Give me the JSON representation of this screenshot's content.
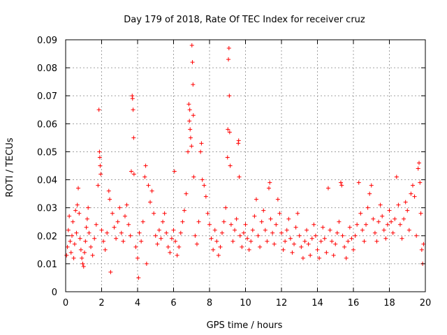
{
  "chart_data": {
    "type": "scatter",
    "title": "Day 179 of 2018, Rate Of TEC Index for receiver cruz",
    "xlabel": "GPS time / hours",
    "ylabel": "ROTI / TECUs",
    "xlim": [
      0,
      20
    ],
    "ylim": [
      0,
      0.09
    ],
    "x_ticks": [
      "0",
      "2",
      "4",
      "6",
      "8",
      "10",
      "12",
      "14",
      "16",
      "18",
      "20"
    ],
    "y_ticks": [
      "0",
      "0.01",
      "0.02",
      "0.03",
      "0.04",
      "0.05",
      "0.06",
      "0.07",
      "0.08",
      "0.09"
    ],
    "grid": true,
    "marker": "+",
    "color": "#ff0000",
    "series": [
      {
        "name": "ROTI",
        "points": [
          [
            0.05,
            0.013
          ],
          [
            0.1,
            0.016
          ],
          [
            0.15,
            0.022
          ],
          [
            0.2,
            0.027
          ],
          [
            0.25,
            0.018
          ],
          [
            0.3,
            0.014
          ],
          [
            0.35,
            0.02
          ],
          [
            0.4,
            0.025
          ],
          [
            0.45,
            0.012
          ],
          [
            0.5,
            0.017
          ],
          [
            0.55,
            0.029
          ],
          [
            0.6,
            0.021
          ],
          [
            0.65,
            0.031
          ],
          [
            0.7,
            0.037
          ],
          [
            0.75,
            0.028
          ],
          [
            0.8,
            0.019
          ],
          [
            0.85,
            0.015
          ],
          [
            0.9,
            0.012
          ],
          [
            0.95,
            0.01
          ],
          [
            1.0,
            0.009
          ],
          [
            1.05,
            0.014
          ],
          [
            1.1,
            0.018
          ],
          [
            1.15,
            0.023
          ],
          [
            1.2,
            0.026
          ],
          [
            1.25,
            0.03
          ],
          [
            1.3,
            0.021
          ],
          [
            1.4,
            0.016
          ],
          [
            1.5,
            0.013
          ],
          [
            1.6,
            0.019
          ],
          [
            1.7,
            0.024
          ],
          [
            1.8,
            0.038
          ],
          [
            1.85,
            0.065
          ],
          [
            1.88,
            0.05
          ],
          [
            1.9,
            0.048
          ],
          [
            1.92,
            0.045
          ],
          [
            1.95,
            0.042
          ],
          [
            2.0,
            0.022
          ],
          [
            2.1,
            0.018
          ],
          [
            2.2,
            0.015
          ],
          [
            2.3,
            0.021
          ],
          [
            2.4,
            0.036
          ],
          [
            2.45,
            0.033
          ],
          [
            2.5,
            0.007
          ],
          [
            2.6,
            0.028
          ],
          [
            2.7,
            0.023
          ],
          [
            2.8,
            0.019
          ],
          [
            2.9,
            0.025
          ],
          [
            3.0,
            0.03
          ],
          [
            3.1,
            0.021
          ],
          [
            3.2,
            0.018
          ],
          [
            3.3,
            0.027
          ],
          [
            3.4,
            0.031
          ],
          [
            3.5,
            0.024
          ],
          [
            3.6,
            0.02
          ],
          [
            3.65,
            0.043
          ],
          [
            3.7,
            0.07
          ],
          [
            3.72,
            0.069
          ],
          [
            3.75,
            0.065
          ],
          [
            3.78,
            0.055
          ],
          [
            3.8,
            0.042
          ],
          [
            3.9,
            0.016
          ],
          [
            4.0,
            0.012
          ],
          [
            4.05,
            0.005
          ],
          [
            4.1,
            0.021
          ],
          [
            4.2,
            0.018
          ],
          [
            4.3,
            0.025
          ],
          [
            4.4,
            0.041
          ],
          [
            4.45,
            0.045
          ],
          [
            4.5,
            0.01
          ],
          [
            4.6,
            0.038
          ],
          [
            4.7,
            0.032
          ],
          [
            4.8,
            0.036
          ],
          [
            4.9,
            0.028
          ],
          [
            5.0,
            0.02
          ],
          [
            5.1,
            0.017
          ],
          [
            5.2,
            0.022
          ],
          [
            5.3,
            0.019
          ],
          [
            5.4,
            0.025
          ],
          [
            5.5,
            0.028
          ],
          [
            5.6,
            0.021
          ],
          [
            5.7,
            0.016
          ],
          [
            5.8,
            0.014
          ],
          [
            5.9,
            0.019
          ],
          [
            6.0,
            0.022
          ],
          [
            6.05,
            0.043
          ],
          [
            6.1,
            0.018
          ],
          [
            6.2,
            0.013
          ],
          [
            6.3,
            0.016
          ],
          [
            6.4,
            0.021
          ],
          [
            6.5,
            0.025
          ],
          [
            6.6,
            0.029
          ],
          [
            6.7,
            0.035
          ],
          [
            6.8,
            0.05
          ],
          [
            6.85,
            0.067
          ],
          [
            6.88,
            0.061
          ],
          [
            6.9,
            0.065
          ],
          [
            6.92,
            0.058
          ],
          [
            6.95,
            0.055
          ],
          [
            7.0,
            0.052
          ],
          [
            7.02,
            0.088
          ],
          [
            7.05,
            0.082
          ],
          [
            7.08,
            0.074
          ],
          [
            7.1,
            0.063
          ],
          [
            7.12,
            0.041
          ],
          [
            7.2,
            0.02
          ],
          [
            7.3,
            0.017
          ],
          [
            7.4,
            0.025
          ],
          [
            7.5,
            0.05
          ],
          [
            7.55,
            0.053
          ],
          [
            7.6,
            0.04
          ],
          [
            7.7,
            0.038
          ],
          [
            7.8,
            0.034
          ],
          [
            7.9,
            0.028
          ],
          [
            8.0,
            0.024
          ],
          [
            8.1,
            0.019
          ],
          [
            8.2,
            0.015
          ],
          [
            8.3,
            0.022
          ],
          [
            8.4,
            0.018
          ],
          [
            8.5,
            0.013
          ],
          [
            8.6,
            0.016
          ],
          [
            8.7,
            0.021
          ],
          [
            8.8,
            0.025
          ],
          [
            8.9,
            0.03
          ],
          [
            9.0,
            0.048
          ],
          [
            9.02,
            0.058
          ],
          [
            9.05,
            0.083
          ],
          [
            9.08,
            0.087
          ],
          [
            9.1,
            0.07
          ],
          [
            9.12,
            0.057
          ],
          [
            9.15,
            0.045
          ],
          [
            9.2,
            0.024
          ],
          [
            9.3,
            0.018
          ],
          [
            9.4,
            0.022
          ],
          [
            9.5,
            0.026
          ],
          [
            9.6,
            0.053
          ],
          [
            9.62,
            0.054
          ],
          [
            9.65,
            0.041
          ],
          [
            9.7,
            0.02
          ],
          [
            9.8,
            0.016
          ],
          [
            9.9,
            0.021
          ],
          [
            10.0,
            0.024
          ],
          [
            10.1,
            0.019
          ],
          [
            10.2,
            0.015
          ],
          [
            10.3,
            0.018
          ],
          [
            10.4,
            0.022
          ],
          [
            10.5,
            0.027
          ],
          [
            10.6,
            0.033
          ],
          [
            10.7,
            0.02
          ],
          [
            10.8,
            0.016
          ],
          [
            10.9,
            0.025
          ],
          [
            11.0,
            0.029
          ],
          [
            11.1,
            0.022
          ],
          [
            11.2,
            0.018
          ],
          [
            11.3,
            0.037
          ],
          [
            11.35,
            0.039
          ],
          [
            11.4,
            0.026
          ],
          [
            11.5,
            0.021
          ],
          [
            11.6,
            0.017
          ],
          [
            11.7,
            0.024
          ],
          [
            11.8,
            0.033
          ],
          [
            11.9,
            0.028
          ],
          [
            12.0,
            0.021
          ],
          [
            12.1,
            0.015
          ],
          [
            12.2,
            0.018
          ],
          [
            12.3,
            0.022
          ],
          [
            12.4,
            0.026
          ],
          [
            12.5,
            0.019
          ],
          [
            12.6,
            0.014
          ],
          [
            12.7,
            0.017
          ],
          [
            12.8,
            0.023
          ],
          [
            12.9,
            0.028
          ],
          [
            13.0,
            0.02
          ],
          [
            13.1,
            0.016
          ],
          [
            13.2,
            0.012
          ],
          [
            13.3,
            0.018
          ],
          [
            13.4,
            0.022
          ],
          [
            13.5,
            0.017
          ],
          [
            13.6,
            0.013
          ],
          [
            13.7,
            0.019
          ],
          [
            13.8,
            0.024
          ],
          [
            13.9,
            0.02
          ],
          [
            14.0,
            0.015
          ],
          [
            14.1,
            0.012
          ],
          [
            14.2,
            0.018
          ],
          [
            14.3,
            0.023
          ],
          [
            14.4,
            0.019
          ],
          [
            14.5,
            0.014
          ],
          [
            14.6,
            0.037
          ],
          [
            14.7,
            0.022
          ],
          [
            14.8,
            0.018
          ],
          [
            14.9,
            0.013
          ],
          [
            15.0,
            0.017
          ],
          [
            15.1,
            0.021
          ],
          [
            15.2,
            0.025
          ],
          [
            15.3,
            0.039
          ],
          [
            15.35,
            0.038
          ],
          [
            15.4,
            0.02
          ],
          [
            15.5,
            0.016
          ],
          [
            15.6,
            0.012
          ],
          [
            15.7,
            0.018
          ],
          [
            15.8,
            0.023
          ],
          [
            15.9,
            0.019
          ],
          [
            16.0,
            0.015
          ],
          [
            16.1,
            0.02
          ],
          [
            16.2,
            0.024
          ],
          [
            16.3,
            0.039
          ],
          [
            16.4,
            0.028
          ],
          [
            16.5,
            0.022
          ],
          [
            16.6,
            0.018
          ],
          [
            16.7,
            0.024
          ],
          [
            16.8,
            0.03
          ],
          [
            16.9,
            0.035
          ],
          [
            17.0,
            0.038
          ],
          [
            17.1,
            0.026
          ],
          [
            17.2,
            0.021
          ],
          [
            17.3,
            0.018
          ],
          [
            17.4,
            0.025
          ],
          [
            17.5,
            0.031
          ],
          [
            17.6,
            0.027
          ],
          [
            17.7,
            0.022
          ],
          [
            17.8,
            0.019
          ],
          [
            17.9,
            0.024
          ],
          [
            18.0,
            0.029
          ],
          [
            18.1,
            0.025
          ],
          [
            18.2,
            0.021
          ],
          [
            18.3,
            0.026
          ],
          [
            18.4,
            0.041
          ],
          [
            18.5,
            0.031
          ],
          [
            18.6,
            0.024
          ],
          [
            18.7,
            0.019
          ],
          [
            18.8,
            0.026
          ],
          [
            18.9,
            0.032
          ],
          [
            19.0,
            0.029
          ],
          [
            19.1,
            0.022
          ],
          [
            19.2,
            0.035
          ],
          [
            19.3,
            0.038
          ],
          [
            19.4,
            0.034
          ],
          [
            19.5,
            0.02
          ],
          [
            19.6,
            0.044
          ],
          [
            19.65,
            0.046
          ],
          [
            19.7,
            0.039
          ],
          [
            19.75,
            0.028
          ],
          [
            19.8,
            0.015
          ],
          [
            19.85,
            0.01
          ],
          [
            19.9,
            0.017
          ]
        ]
      }
    ]
  }
}
